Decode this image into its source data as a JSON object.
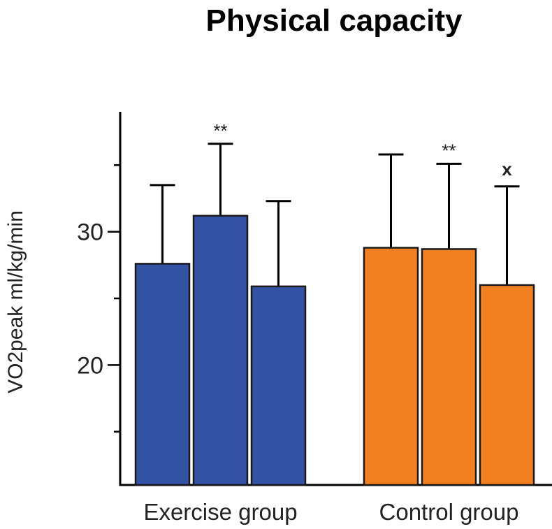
{
  "chart_data": {
    "type": "bar",
    "title": "Physical capacity",
    "xlabel": "",
    "ylabel": "VO2peak ml/kg/min",
    "ylim": [
      11,
      39
    ],
    "yticks": [
      20,
      30
    ],
    "grid": false,
    "groups": [
      {
        "label": "Exercise group",
        "color": "#3452a4",
        "bars": [
          {
            "value": 27.6,
            "error": 5.9,
            "annotation": ""
          },
          {
            "value": 31.2,
            "error": 5.4,
            "annotation": "**"
          },
          {
            "value": 25.9,
            "error": 6.4,
            "annotation": ""
          }
        ]
      },
      {
        "label": "Control group",
        "color": "#f28020",
        "bars": [
          {
            "value": 28.8,
            "error": 7.0,
            "annotation": ""
          },
          {
            "value": 28.7,
            "error": 6.4,
            "annotation": "**"
          },
          {
            "value": 26.0,
            "error": 7.4,
            "annotation": "x"
          }
        ]
      }
    ]
  }
}
